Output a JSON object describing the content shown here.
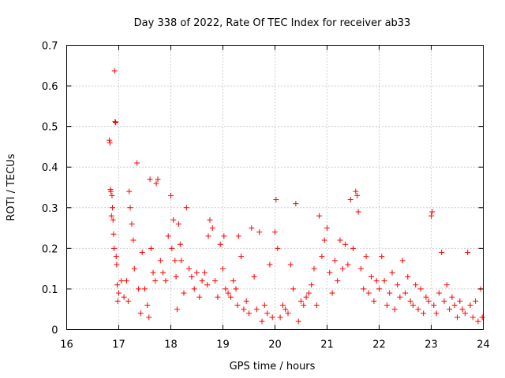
{
  "chart_data": {
    "type": "scatter",
    "title": "Day 338 of 2022, Rate Of TEC Index for receiver ab33",
    "xlabel": "GPS time / hours",
    "ylabel": "ROTI / TECUs",
    "xlim": [
      16,
      24
    ],
    "ylim": [
      0,
      0.7
    ],
    "xticks": [
      "16",
      "17",
      "18",
      "19",
      "20",
      "21",
      "22",
      "23",
      "24"
    ],
    "yticks": [
      "0",
      "0.1",
      "0.2",
      "0.3",
      "0.4",
      "0.5",
      "0.6",
      "0.7"
    ],
    "grid": true,
    "marker": "+",
    "color": "#ff0000",
    "series": [
      {
        "name": "ROTI",
        "points": [
          [
            16.82,
            0.466
          ],
          [
            16.83,
            0.46
          ],
          [
            16.84,
            0.345
          ],
          [
            16.85,
            0.34
          ],
          [
            16.86,
            0.28
          ],
          [
            16.87,
            0.33
          ],
          [
            16.88,
            0.3
          ],
          [
            16.89,
            0.27
          ],
          [
            16.9,
            0.235
          ],
          [
            16.91,
            0.2
          ],
          [
            16.92,
            0.637
          ],
          [
            16.93,
            0.512
          ],
          [
            16.94,
            0.51
          ],
          [
            16.95,
            0.18
          ],
          [
            16.96,
            0.16
          ],
          [
            16.97,
            0.11
          ],
          [
            16.98,
            0.07
          ],
          [
            17.0,
            0.09
          ],
          [
            17.05,
            0.12
          ],
          [
            17.1,
            0.08
          ],
          [
            17.15,
            0.12
          ],
          [
            17.18,
            0.07
          ],
          [
            17.2,
            0.34
          ],
          [
            17.22,
            0.3
          ],
          [
            17.25,
            0.26
          ],
          [
            17.28,
            0.22
          ],
          [
            17.3,
            0.15
          ],
          [
            17.35,
            0.41
          ],
          [
            17.38,
            0.1
          ],
          [
            17.42,
            0.04
          ],
          [
            17.45,
            0.19
          ],
          [
            17.5,
            0.1
          ],
          [
            17.55,
            0.06
          ],
          [
            17.58,
            0.03
          ],
          [
            17.6,
            0.37
          ],
          [
            17.62,
            0.2
          ],
          [
            17.66,
            0.14
          ],
          [
            17.7,
            0.12
          ],
          [
            17.72,
            0.36
          ],
          [
            17.75,
            0.37
          ],
          [
            17.8,
            0.17
          ],
          [
            17.85,
            0.14
          ],
          [
            17.9,
            0.12
          ],
          [
            17.95,
            0.23
          ],
          [
            18.0,
            0.33
          ],
          [
            18.02,
            0.2
          ],
          [
            18.05,
            0.27
          ],
          [
            18.08,
            0.17
          ],
          [
            18.1,
            0.13
          ],
          [
            18.12,
            0.05
          ],
          [
            18.15,
            0.26
          ],
          [
            18.18,
            0.21
          ],
          [
            18.2,
            0.17
          ],
          [
            18.25,
            0.09
          ],
          [
            18.3,
            0.3
          ],
          [
            18.35,
            0.15
          ],
          [
            18.4,
            0.13
          ],
          [
            18.45,
            0.1
          ],
          [
            18.5,
            0.14
          ],
          [
            18.55,
            0.08
          ],
          [
            18.6,
            0.12
          ],
          [
            18.65,
            0.14
          ],
          [
            18.7,
            0.11
          ],
          [
            18.72,
            0.23
          ],
          [
            18.75,
            0.27
          ],
          [
            18.8,
            0.25
          ],
          [
            18.85,
            0.12
          ],
          [
            18.9,
            0.08
          ],
          [
            18.95,
            0.21
          ],
          [
            19.0,
            0.15
          ],
          [
            19.02,
            0.23
          ],
          [
            19.05,
            0.1
          ],
          [
            19.1,
            0.09
          ],
          [
            19.15,
            0.08
          ],
          [
            19.2,
            0.12
          ],
          [
            19.25,
            0.1
          ],
          [
            19.28,
            0.06
          ],
          [
            19.3,
            0.23
          ],
          [
            19.35,
            0.18
          ],
          [
            19.4,
            0.05
          ],
          [
            19.45,
            0.07
          ],
          [
            19.5,
            0.04
          ],
          [
            19.55,
            0.25
          ],
          [
            19.6,
            0.13
          ],
          [
            19.65,
            0.05
          ],
          [
            19.7,
            0.24
          ],
          [
            19.75,
            0.02
          ],
          [
            19.8,
            0.06
          ],
          [
            19.85,
            0.04
          ],
          [
            19.9,
            0.16
          ],
          [
            19.95,
            0.03
          ],
          [
            20.0,
            0.24
          ],
          [
            20.02,
            0.32
          ],
          [
            20.05,
            0.2
          ],
          [
            20.1,
            0.03
          ],
          [
            20.15,
            0.06
          ],
          [
            20.2,
            0.05
          ],
          [
            20.25,
            0.04
          ],
          [
            20.3,
            0.16
          ],
          [
            20.35,
            0.1
          ],
          [
            20.4,
            0.31
          ],
          [
            20.45,
            0.02
          ],
          [
            20.5,
            0.07
          ],
          [
            20.55,
            0.06
          ],
          [
            20.6,
            0.08
          ],
          [
            20.65,
            0.09
          ],
          [
            20.7,
            0.11
          ],
          [
            20.75,
            0.15
          ],
          [
            20.8,
            0.06
          ],
          [
            20.85,
            0.28
          ],
          [
            20.9,
            0.18
          ],
          [
            20.95,
            0.22
          ],
          [
            21.0,
            0.25
          ],
          [
            21.05,
            0.14
          ],
          [
            21.1,
            0.09
          ],
          [
            21.15,
            0.17
          ],
          [
            21.2,
            0.12
          ],
          [
            21.25,
            0.22
          ],
          [
            21.3,
            0.15
          ],
          [
            21.35,
            0.21
          ],
          [
            21.4,
            0.16
          ],
          [
            21.45,
            0.32
          ],
          [
            21.5,
            0.2
          ],
          [
            21.55,
            0.34
          ],
          [
            21.58,
            0.33
          ],
          [
            21.6,
            0.29
          ],
          [
            21.65,
            0.15
          ],
          [
            21.7,
            0.1
          ],
          [
            21.75,
            0.18
          ],
          [
            21.8,
            0.09
          ],
          [
            21.85,
            0.13
          ],
          [
            21.9,
            0.07
          ],
          [
            21.95,
            0.12
          ],
          [
            22.0,
            0.1
          ],
          [
            22.05,
            0.18
          ],
          [
            22.1,
            0.12
          ],
          [
            22.15,
            0.06
          ],
          [
            22.2,
            0.09
          ],
          [
            22.25,
            0.14
          ],
          [
            22.3,
            0.05
          ],
          [
            22.35,
            0.11
          ],
          [
            22.4,
            0.08
          ],
          [
            22.45,
            0.17
          ],
          [
            22.5,
            0.09
          ],
          [
            22.55,
            0.13
          ],
          [
            22.6,
            0.07
          ],
          [
            22.65,
            0.06
          ],
          [
            22.7,
            0.11
          ],
          [
            22.75,
            0.05
          ],
          [
            22.8,
            0.1
          ],
          [
            22.85,
            0.04
          ],
          [
            22.9,
            0.08
          ],
          [
            22.95,
            0.07
          ],
          [
            23.0,
            0.28
          ],
          [
            23.02,
            0.29
          ],
          [
            23.05,
            0.06
          ],
          [
            23.1,
            0.04
          ],
          [
            23.15,
            0.09
          ],
          [
            23.2,
            0.19
          ],
          [
            23.25,
            0.07
          ],
          [
            23.3,
            0.11
          ],
          [
            23.35,
            0.05
          ],
          [
            23.4,
            0.08
          ],
          [
            23.45,
            0.06
          ],
          [
            23.5,
            0.03
          ],
          [
            23.55,
            0.07
          ],
          [
            23.6,
            0.05
          ],
          [
            23.65,
            0.04
          ],
          [
            23.7,
            0.19
          ],
          [
            23.75,
            0.06
          ],
          [
            23.8,
            0.03
          ],
          [
            23.85,
            0.07
          ],
          [
            23.9,
            0.02
          ],
          [
            23.95,
            0.1
          ],
          [
            23.98,
            0.03
          ]
        ]
      }
    ]
  }
}
